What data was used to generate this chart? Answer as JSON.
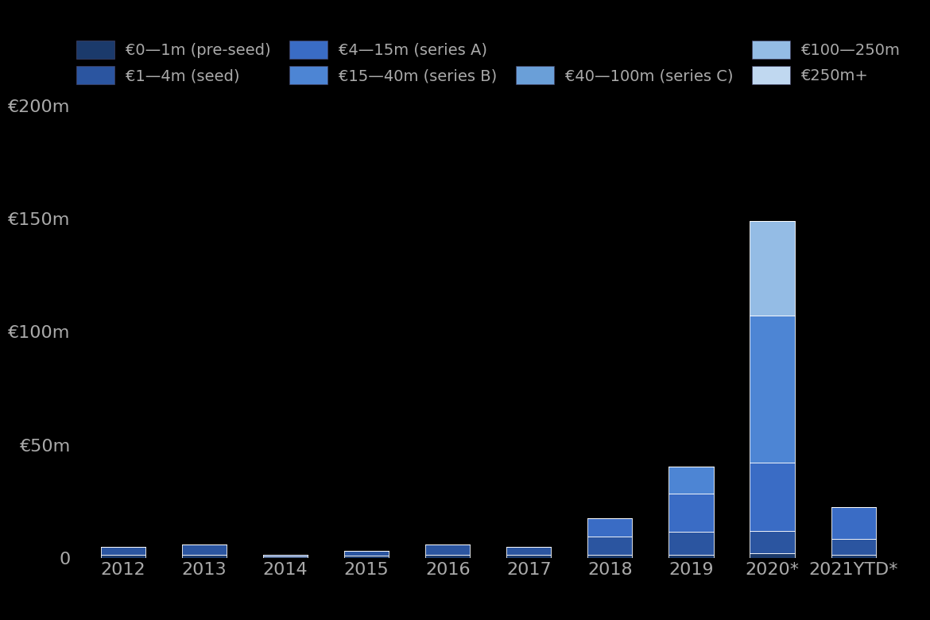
{
  "categories": [
    "2012",
    "2013",
    "2014",
    "2015",
    "2016",
    "2017",
    "2018",
    "2019",
    "2020*",
    "2021YTD*"
  ],
  "series": [
    {
      "label": "€0—1m (pre-seed)",
      "color": "#1b3a6b",
      "values": [
        1.5,
        1.5,
        0.8,
        1.0,
        1.5,
        1.5,
        1.5,
        1.5,
        2.0,
        1.5
      ]
    },
    {
      "label": "€1—4m (seed)",
      "color": "#2b55a0",
      "values": [
        3.5,
        4.5,
        0.5,
        2.0,
        4.5,
        3.5,
        8.0,
        10.0,
        10.0,
        7.0
      ]
    },
    {
      "label": "€4—15m (series A)",
      "color": "#3a6cc5",
      "values": [
        0,
        0,
        0,
        0,
        0,
        0,
        8.0,
        17.0,
        30.0,
        14.0
      ]
    },
    {
      "label": "€15—40m (series B)",
      "color": "#4d85d4",
      "values": [
        0,
        0,
        0,
        0,
        0,
        0,
        0,
        12.0,
        65.0,
        0
      ]
    },
    {
      "label": "€40—100m (series C)",
      "color": "#6a9fd8",
      "values": [
        0,
        0,
        0,
        0,
        0,
        0,
        0,
        0,
        0,
        0
      ]
    },
    {
      "label": "€100—250m",
      "color": "#94bce5",
      "values": [
        0,
        0,
        0,
        0,
        0,
        0,
        0,
        0,
        42.0,
        0
      ]
    },
    {
      "label": "€250m+",
      "color": "#c0d8f0",
      "values": [
        0,
        0,
        0,
        0,
        0,
        0,
        0,
        0,
        0,
        0
      ]
    }
  ],
  "ylim": [
    0,
    200
  ],
  "yticks": [
    0,
    50,
    100,
    150,
    200
  ],
  "ytick_labels": [
    "0",
    "€50m",
    "€100m",
    "€150m",
    "€200m"
  ],
  "background_color": "#000000",
  "text_color": "#aaaaaa",
  "bar_width": 0.55,
  "figsize": [
    11.7,
    7.8
  ],
  "dpi": 100
}
